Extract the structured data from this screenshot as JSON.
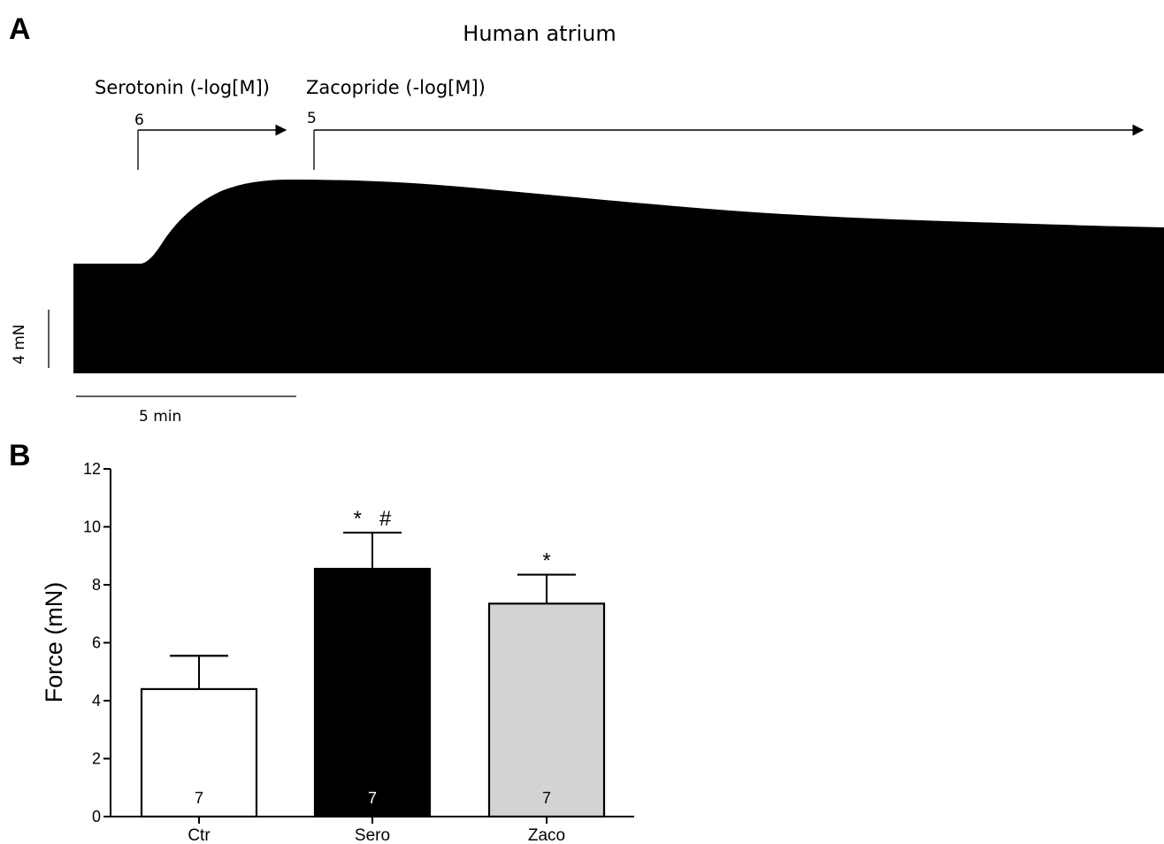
{
  "panel_a": {
    "letter": "A",
    "title": "Human atrium",
    "drug1": {
      "label": "Serotonin (-log[M])",
      "conc": "6"
    },
    "drug2": {
      "label": "Zacopride (-log[M])",
      "conc": "5"
    },
    "scale_force": "4 mN",
    "scale_time": "5 min"
  },
  "panel_b": {
    "letter": "B"
  },
  "chart_data": {
    "type": "bar",
    "categories": [
      "Ctr",
      "Sero",
      "Zaco"
    ],
    "values": [
      4.4,
      8.55,
      7.35
    ],
    "errors": [
      1.15,
      1.25,
      1.0
    ],
    "n_labels": [
      "7",
      "7",
      "7"
    ],
    "significance": [
      "",
      "*   #",
      "*"
    ],
    "bar_colors": [
      "#ffffff",
      "#000000",
      "#d3d3d3"
    ],
    "ylabel": "Force (mN)",
    "ylim": [
      0,
      12
    ],
    "yticks": [
      0,
      2,
      4,
      6,
      8,
      10,
      12
    ]
  }
}
